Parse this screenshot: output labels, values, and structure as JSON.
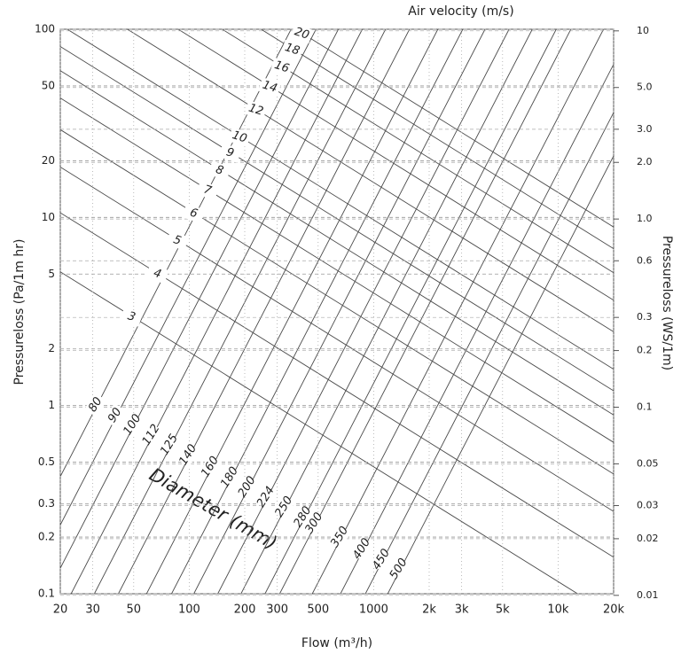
{
  "chart_data": {
    "type": "nomogram",
    "top_label": "Air velocity (m/s)",
    "x_label": "Flow (m³/h)",
    "y_label": "Pressureloss (Pa/1m hr)",
    "y2_label": "Pressureloss (WS/1m)",
    "annotation": "Diameter (mm)",
    "xscale": "log",
    "yscale": "log",
    "grid": true,
    "xlim": [
      20,
      20000
    ],
    "ylim": [
      0.1,
      100
    ],
    "y2lim": [
      0.0102,
      10.2
    ],
    "xticks": [
      20,
      30,
      50,
      100,
      200,
      300,
      500,
      1000,
      {
        "value": 2000,
        "label": "2k"
      },
      {
        "value": 3000,
        "label": "3k"
      },
      {
        "value": 5000,
        "label": "5k"
      },
      {
        "value": 10000,
        "label": "10k"
      },
      {
        "value": 20000,
        "label": "20k"
      }
    ],
    "yticks": [
      100,
      50,
      20,
      10,
      5,
      2,
      1,
      0.5,
      0.3,
      0.2,
      0.1
    ],
    "y2ticks": [
      10,
      {
        "value": 5,
        "label": "5.0"
      },
      {
        "value": 3,
        "label": "3.0"
      },
      {
        "value": 2,
        "label": "2.0"
      },
      {
        "value": 1,
        "label": "1.0"
      },
      0.6,
      0.3,
      0.2,
      0.1,
      0.05,
      0.03,
      0.02,
      0.01
    ],
    "line_color": "#4a4a4a",
    "diameter_series": [
      {
        "name": "80",
        "x": [
          9.4,
          357
        ],
        "values": [
          0.1,
          100
        ]
      },
      {
        "name": "90",
        "x": [
          12.85,
          487
        ],
        "values": [
          0.1,
          100
        ]
      },
      {
        "name": "100",
        "x": [
          16.96,
          643.7
        ],
        "values": [
          0.1,
          100
        ]
      },
      {
        "name": "112",
        "x": [
          22.9,
          868
        ],
        "values": [
          0.1,
          100
        ]
      },
      {
        "name": "125",
        "x": [
          30.6,
          1160
        ],
        "values": [
          0.1,
          100
        ]
      },
      {
        "name": "140",
        "x": [
          41.3,
          1565
        ],
        "values": [
          0.1,
          100
        ]
      },
      {
        "name": "160",
        "x": [
          58.7,
          2228
        ],
        "values": [
          0.1,
          100
        ]
      },
      {
        "name": "180",
        "x": [
          80.2,
          3042
        ],
        "values": [
          0.1,
          100
        ]
      },
      {
        "name": "200",
        "x": [
          105.9,
          4018
        ],
        "values": [
          0.1,
          100
        ]
      },
      {
        "name": "224",
        "x": [
          142.9,
          5420
        ],
        "values": [
          0.1,
          100
        ]
      },
      {
        "name": "250",
        "x": [
          191.0,
          7244
        ],
        "values": [
          0.1,
          100
        ]
      },
      {
        "name": "280",
        "x": [
          257.7,
          9772
        ],
        "values": [
          0.1,
          100
        ]
      },
      {
        "name": "300",
        "x": [
          309.3,
          11730
        ],
        "values": [
          0.1,
          100
        ]
      },
      {
        "name": "350",
        "x": [
          464.7,
          17630
        ],
        "values": [
          0.1,
          100
        ]
      },
      {
        "name": "400",
        "x": [
          661.2,
          25070
        ],
        "values": [
          0.1,
          100
        ]
      },
      {
        "name": "450",
        "x": [
          902.8,
          34220
        ],
        "values": [
          0.1,
          100
        ]
      },
      {
        "name": "500",
        "x": [
          1192,
          45220
        ],
        "values": [
          0.1,
          100
        ]
      }
    ],
    "velocity_series": [
      {
        "name": "3",
        "x": [
          20,
          20000
        ],
        "values": [
          5.14,
          0.076
        ]
      },
      {
        "name": "4",
        "x": [
          20,
          20000
        ],
        "values": [
          10.58,
          0.1564
        ]
      },
      {
        "name": "5",
        "x": [
          20,
          20000
        ],
        "values": [
          18.52,
          0.2739
        ]
      },
      {
        "name": "6",
        "x": [
          20,
          20000
        ],
        "values": [
          29.27,
          0.433
        ]
      },
      {
        "name": "7",
        "x": [
          20,
          20000
        ],
        "values": [
          43.09,
          0.6375
        ]
      },
      {
        "name": "8",
        "x": [
          20,
          20000
        ],
        "values": [
          60.26,
          0.8913
        ]
      },
      {
        "name": "9",
        "x": [
          20,
          20000
        ],
        "values": [
          80.97,
          1.198
        ]
      },
      {
        "name": "10",
        "x": [
          20,
          20000
        ],
        "values": [
          105.5,
          1.561
        ]
      },
      {
        "name": "12",
        "x": [
          20,
          20000
        ],
        "values": [
          166.7,
          2.466
        ]
      },
      {
        "name": "14",
        "x": [
          20,
          20000
        ],
        "values": [
          245.5,
          3.631
        ]
      },
      {
        "name": "16",
        "x": [
          20,
          20000
        ],
        "values": [
          343.1,
          5.077
        ]
      },
      {
        "name": "18",
        "x": [
          20,
          20000
        ],
        "values": [
          461.3,
          6.823
        ]
      },
      {
        "name": "20",
        "x": [
          20,
          20000
        ],
        "values": [
          600.9,
          8.889
        ]
      }
    ]
  }
}
